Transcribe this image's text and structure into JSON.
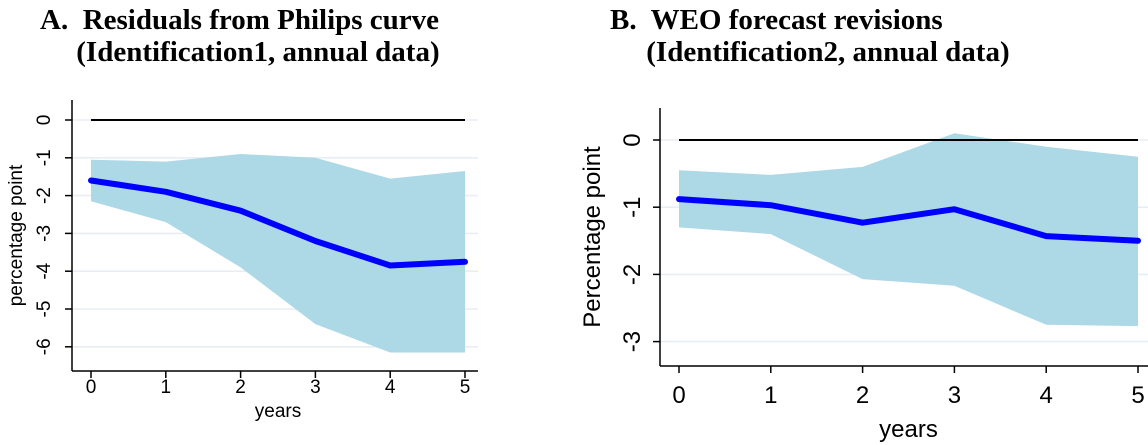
{
  "panels": [
    {
      "title_line1": "A.  Residuals from Philips curve",
      "title_line2": "     (Identification1, annual data)"
    },
    {
      "title_line1": "B.  WEO forecast revisions",
      "title_line2": "     (Identification2, annual data)"
    }
  ],
  "chart_data": [
    {
      "type": "area",
      "title": "A.  Residuals from Philips curve (Identification1, annual data)",
      "xlabel": "years",
      "ylabel": "percentage point",
      "x": [
        0,
        1,
        2,
        3,
        4,
        5
      ],
      "xticks": [
        "0",
        "1",
        "2",
        "3",
        "4",
        "5"
      ],
      "yticks": [
        0,
        -1,
        -2,
        -3,
        -4,
        -5,
        -6
      ],
      "xlim": [
        0,
        5
      ],
      "ylim": [
        -6.2,
        0.15
      ],
      "grid": true,
      "series": [
        {
          "role": "estimate",
          "values": [
            -1.6,
            -1.9,
            -2.4,
            -3.2,
            -3.85,
            -3.75
          ],
          "color": "#0000ff"
        },
        {
          "role": "band-upper",
          "values": [
            -1.05,
            -1.1,
            -0.9,
            -1.0,
            -1.55,
            -1.35
          ],
          "color": "#add8e6"
        },
        {
          "role": "band-lower",
          "values": [
            -2.15,
            -2.7,
            -3.9,
            -5.4,
            -6.15,
            -6.15
          ],
          "color": "#add8e6"
        },
        {
          "role": "zero-line",
          "values": [
            0,
            0,
            0,
            0,
            0,
            0
          ],
          "color": "#000000"
        }
      ]
    },
    {
      "type": "area",
      "title": "B.  WEO forecast revisions (Identification2, annual data)",
      "xlabel": "years",
      "ylabel": "Percentage point",
      "x": [
        0,
        1,
        2,
        3,
        4,
        5
      ],
      "xticks": [
        "0",
        "1",
        "2",
        "3",
        "4",
        "5"
      ],
      "yticks": [
        0,
        -1,
        -2,
        -3
      ],
      "xlim": [
        0,
        5
      ],
      "ylim": [
        -3.35,
        0.3
      ],
      "grid": true,
      "series": [
        {
          "role": "estimate",
          "values": [
            -0.88,
            -0.97,
            -1.23,
            -1.03,
            -1.43,
            -1.5
          ],
          "color": "#0000ff"
        },
        {
          "role": "band-upper",
          "values": [
            -0.45,
            -0.52,
            -0.4,
            0.1,
            -0.1,
            -0.25
          ],
          "color": "#add8e6"
        },
        {
          "role": "band-lower",
          "values": [
            -1.3,
            -1.4,
            -2.07,
            -2.17,
            -2.75,
            -2.77
          ],
          "color": "#add8e6"
        },
        {
          "role": "zero-line",
          "values": [
            0,
            0,
            0,
            0,
            0,
            0
          ],
          "color": "#000000"
        }
      ]
    }
  ]
}
